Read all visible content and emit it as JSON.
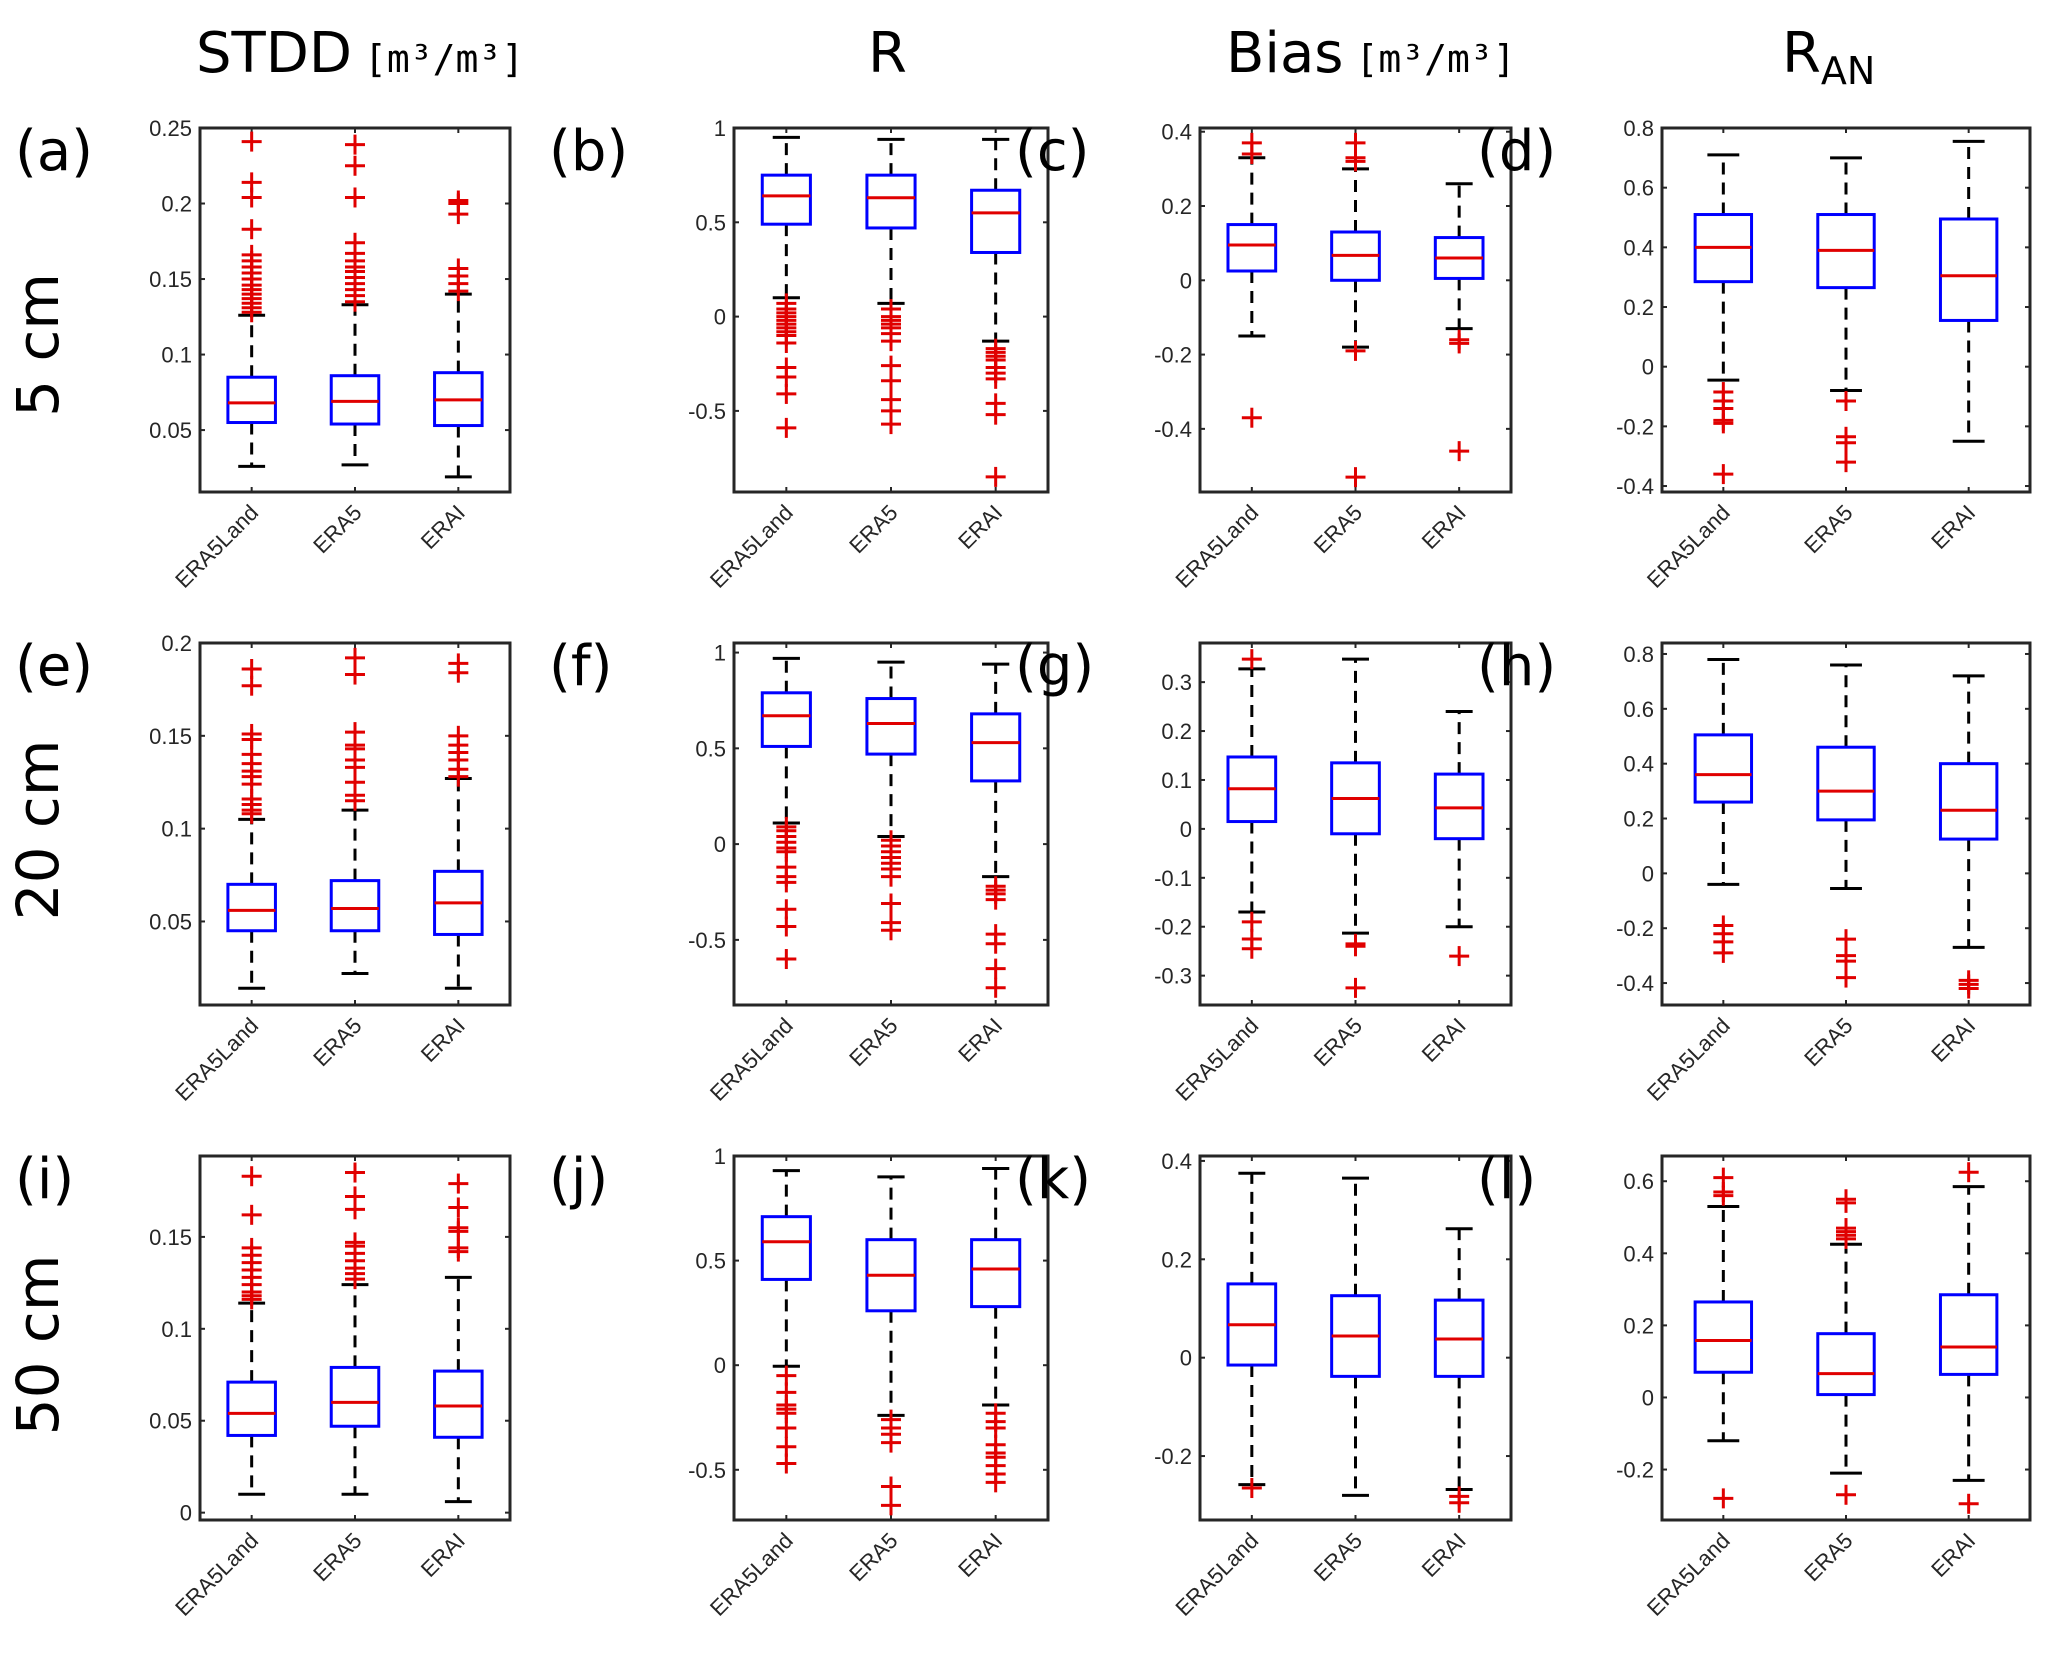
{
  "figure": {
    "column_titles": [
      {
        "main": "STDD",
        "unit": "[m³/m³]"
      },
      {
        "main": "R",
        "unit": ""
      },
      {
        "main": "Bias",
        "unit": "[m³/m³]"
      },
      {
        "main": "R",
        "sub": "AN",
        "unit": ""
      }
    ],
    "row_labels": [
      "5 cm",
      "20 cm",
      "50 cm"
    ],
    "colors": {
      "box": "#0000ff",
      "median": "#e00000",
      "whisker": "#000000",
      "outlier": "#e00000",
      "axes": "#262626"
    }
  },
  "chart_data": [
    {
      "type": "box",
      "panel": "(a)",
      "metric": "STDD",
      "depth": "5 cm",
      "categories": [
        "ERA5Land",
        "ERA5",
        "ERAI"
      ],
      "ylim": [
        0.009,
        0.25
      ],
      "yticks": [
        0.05,
        0.1,
        0.15,
        0.2,
        0.25
      ],
      "ytick_labels": [
        "0.05",
        "0.1",
        "0.15",
        "0.2",
        "0.25"
      ],
      "boxes": [
        {
          "whisker_low": 0.026,
          "q1": 0.055,
          "median": 0.068,
          "q3": 0.085,
          "whisker_high": 0.126,
          "outliers": [
            0.128,
            0.131,
            0.134,
            0.137,
            0.14,
            0.143,
            0.146,
            0.15,
            0.154,
            0.158,
            0.162,
            0.166,
            0.183,
            0.204,
            0.214,
            0.241
          ]
        },
        {
          "whisker_low": 0.027,
          "q1": 0.054,
          "median": 0.069,
          "q3": 0.086,
          "whisker_high": 0.133,
          "outliers": [
            0.135,
            0.139,
            0.143,
            0.147,
            0.151,
            0.155,
            0.158,
            0.162,
            0.167,
            0.174,
            0.204,
            0.225,
            0.239
          ]
        },
        {
          "whisker_low": 0.019,
          "q1": 0.053,
          "median": 0.07,
          "q3": 0.088,
          "whisker_high": 0.14,
          "outliers": [
            0.142,
            0.147,
            0.152,
            0.157,
            0.193,
            0.2,
            0.202
          ]
        }
      ]
    },
    {
      "type": "box",
      "panel": "(b)",
      "metric": "R",
      "depth": "5 cm",
      "categories": [
        "ERA5Land",
        "ERA5",
        "ERAI"
      ],
      "ylim": [
        -0.93,
        1.0
      ],
      "yticks": [
        -0.5,
        0,
        0.5,
        1
      ],
      "ytick_labels": [
        "-0.5",
        "0",
        "0.5",
        "1"
      ],
      "boxes": [
        {
          "whisker_low": 0.1,
          "q1": 0.49,
          "median": 0.64,
          "q3": 0.75,
          "whisker_high": 0.95,
          "outliers": [
            0.07,
            0.04,
            0.02,
            0.0,
            -0.02,
            -0.04,
            -0.06,
            -0.08,
            -0.1,
            -0.14,
            -0.27,
            -0.32,
            -0.41,
            -0.59
          ]
        },
        {
          "whisker_low": 0.07,
          "q1": 0.47,
          "median": 0.63,
          "q3": 0.75,
          "whisker_high": 0.94,
          "outliers": [
            0.04,
            0.0,
            -0.02,
            -0.04,
            -0.06,
            -0.09,
            -0.13,
            -0.26,
            -0.34,
            -0.44,
            -0.5,
            -0.57
          ]
        },
        {
          "whisker_low": -0.13,
          "q1": 0.34,
          "median": 0.55,
          "q3": 0.67,
          "whisker_high": 0.94,
          "outliers": [
            -0.17,
            -0.19,
            -0.21,
            -0.23,
            -0.27,
            -0.3,
            -0.33,
            -0.46,
            -0.52,
            -0.85
          ]
        }
      ]
    },
    {
      "type": "box",
      "panel": "(c)",
      "metric": "Bias",
      "depth": "5 cm",
      "categories": [
        "ERA5Land",
        "ERA5",
        "ERAI"
      ],
      "ylim": [
        -0.57,
        0.41
      ],
      "yticks": [
        -0.4,
        -0.2,
        0,
        0.2,
        0.4
      ],
      "ytick_labels": [
        "-0.4",
        "-0.2",
        "0",
        "0.2",
        "0.4"
      ],
      "boxes": [
        {
          "whisker_low": -0.15,
          "q1": 0.025,
          "median": 0.095,
          "q3": 0.15,
          "whisker_high": 0.33,
          "outliers": [
            0.34,
            0.37,
            -0.37
          ]
        },
        {
          "whisker_low": -0.18,
          "q1": 0.0,
          "median": 0.067,
          "q3": 0.13,
          "whisker_high": 0.3,
          "outliers": [
            0.32,
            0.33,
            0.37,
            -0.19,
            -0.53
          ]
        },
        {
          "whisker_low": -0.13,
          "q1": 0.005,
          "median": 0.06,
          "q3": 0.115,
          "whisker_high": 0.26,
          "outliers": [
            -0.16,
            -0.17,
            -0.46
          ]
        }
      ]
    },
    {
      "type": "box",
      "panel": "(d)",
      "metric": "R_AN",
      "depth": "5 cm",
      "categories": [
        "ERA5Land",
        "ERA5",
        "ERAI"
      ],
      "ylim": [
        -0.42,
        0.8
      ],
      "yticks": [
        -0.4,
        -0.2,
        0,
        0.2,
        0.4,
        0.6,
        0.8
      ],
      "ytick_labels": [
        "-0.4",
        "-0.2",
        "0",
        "0.2",
        "0.4",
        "0.6",
        "0.8"
      ],
      "boxes": [
        {
          "whisker_low": -0.045,
          "q1": 0.285,
          "median": 0.4,
          "q3": 0.51,
          "whisker_high": 0.71,
          "outliers": [
            -0.085,
            -0.115,
            -0.14,
            -0.18,
            -0.19,
            -0.36
          ]
        },
        {
          "whisker_low": -0.08,
          "q1": 0.265,
          "median": 0.39,
          "q3": 0.51,
          "whisker_high": 0.7,
          "outliers": [
            -0.115,
            -0.235,
            -0.255,
            -0.32
          ]
        },
        {
          "whisker_low": -0.25,
          "q1": 0.155,
          "median": 0.305,
          "q3": 0.495,
          "whisker_high": 0.755,
          "outliers": []
        }
      ]
    },
    {
      "type": "box",
      "panel": "(e)",
      "metric": "STDD",
      "depth": "20 cm",
      "categories": [
        "ERA5Land",
        "ERA5",
        "ERAI"
      ],
      "ylim": [
        0.005,
        0.2
      ],
      "yticks": [
        0.05,
        0.1,
        0.15,
        0.2
      ],
      "ytick_labels": [
        "0.05",
        "0.1",
        "0.15",
        "0.2"
      ],
      "boxes": [
        {
          "whisker_low": 0.014,
          "q1": 0.045,
          "median": 0.056,
          "q3": 0.07,
          "whisker_high": 0.105,
          "outliers": [
            0.108,
            0.11,
            0.113,
            0.116,
            0.124,
            0.128,
            0.131,
            0.135,
            0.14,
            0.148,
            0.151,
            0.177,
            0.186
          ]
        },
        {
          "whisker_low": 0.022,
          "q1": 0.045,
          "median": 0.057,
          "q3": 0.072,
          "whisker_high": 0.11,
          "outliers": [
            0.115,
            0.118,
            0.125,
            0.133,
            0.137,
            0.143,
            0.145,
            0.152,
            0.183,
            0.192
          ]
        },
        {
          "whisker_low": 0.014,
          "q1": 0.043,
          "median": 0.06,
          "q3": 0.077,
          "whisker_high": 0.127,
          "outliers": [
            0.128,
            0.132,
            0.137,
            0.141,
            0.145,
            0.15,
            0.184,
            0.189
          ]
        }
      ]
    },
    {
      "type": "box",
      "panel": "(f)",
      "metric": "R",
      "depth": "20 cm",
      "categories": [
        "ERA5Land",
        "ERA5",
        "ERAI"
      ],
      "ylim": [
        -0.84,
        1.05
      ],
      "yticks": [
        -0.5,
        0,
        0.5,
        1
      ],
      "ytick_labels": [
        "-0.5",
        "0",
        "0.5",
        "1"
      ],
      "boxes": [
        {
          "whisker_low": 0.11,
          "q1": 0.51,
          "median": 0.67,
          "q3": 0.79,
          "whisker_high": 0.97,
          "outliers": [
            0.09,
            0.07,
            0.04,
            0.01,
            -0.02,
            -0.04,
            -0.12,
            -0.17,
            -0.2,
            -0.34,
            -0.43,
            -0.6
          ]
        },
        {
          "whisker_low": 0.04,
          "q1": 0.47,
          "median": 0.63,
          "q3": 0.76,
          "whisker_high": 0.95,
          "outliers": [
            0.02,
            -0.01,
            -0.04,
            -0.07,
            -0.1,
            -0.13,
            -0.17,
            -0.31,
            -0.41,
            -0.45
          ]
        },
        {
          "whisker_low": -0.17,
          "q1": 0.33,
          "median": 0.53,
          "q3": 0.68,
          "whisker_high": 0.94,
          "outliers": [
            -0.22,
            -0.24,
            -0.26,
            -0.29,
            -0.47,
            -0.52,
            -0.65,
            -0.75
          ]
        }
      ]
    },
    {
      "type": "box",
      "panel": "(g)",
      "metric": "Bias",
      "depth": "20 cm",
      "categories": [
        "ERA5Land",
        "ERA5",
        "ERAI"
      ],
      "ylim": [
        -0.36,
        0.38
      ],
      "yticks": [
        -0.3,
        -0.2,
        -0.1,
        0,
        0.1,
        0.2,
        0.3
      ],
      "ytick_labels": [
        "-0.3",
        "-0.2",
        "-0.1",
        "0",
        "0.1",
        "0.2",
        "0.3"
      ],
      "boxes": [
        {
          "whisker_low": -0.17,
          "q1": 0.015,
          "median": 0.082,
          "q3": 0.147,
          "whisker_high": 0.327,
          "outliers": [
            0.347,
            -0.19,
            -0.225,
            -0.245
          ]
        },
        {
          "whisker_low": -0.213,
          "q1": -0.01,
          "median": 0.062,
          "q3": 0.135,
          "whisker_high": 0.347,
          "outliers": [
            -0.235,
            -0.24,
            -0.325
          ]
        },
        {
          "whisker_low": -0.2,
          "q1": -0.02,
          "median": 0.043,
          "q3": 0.112,
          "whisker_high": 0.24,
          "outliers": [
            -0.26
          ]
        }
      ]
    },
    {
      "type": "box",
      "panel": "(h)",
      "metric": "R_AN",
      "depth": "20 cm",
      "categories": [
        "ERA5Land",
        "ERA5",
        "ERAI"
      ],
      "ylim": [
        -0.48,
        0.84
      ],
      "yticks": [
        -0.4,
        -0.2,
        0,
        0.2,
        0.4,
        0.6,
        0.8
      ],
      "ytick_labels": [
        "-0.4",
        "-0.2",
        "0",
        "0.2",
        "0.4",
        "0.6",
        "0.8"
      ],
      "boxes": [
        {
          "whisker_low": -0.04,
          "q1": 0.26,
          "median": 0.36,
          "q3": 0.505,
          "whisker_high": 0.78,
          "outliers": [
            -0.19,
            -0.22,
            -0.25,
            -0.29
          ]
        },
        {
          "whisker_low": -0.055,
          "q1": 0.195,
          "median": 0.3,
          "q3": 0.46,
          "whisker_high": 0.76,
          "outliers": [
            -0.24,
            -0.3,
            -0.32,
            -0.38
          ]
        },
        {
          "whisker_low": -0.27,
          "q1": 0.125,
          "median": 0.23,
          "q3": 0.4,
          "whisker_high": 0.72,
          "outliers": [
            -0.39,
            -0.405,
            -0.42
          ]
        }
      ]
    },
    {
      "type": "box",
      "panel": "(i)",
      "metric": "STDD",
      "depth": "50 cm",
      "categories": [
        "ERA5Land",
        "ERA5",
        "ERAI"
      ],
      "ylim": [
        -0.004,
        0.194
      ],
      "yticks": [
        0,
        0.05,
        0.1,
        0.15
      ],
      "ytick_labels": [
        "0",
        "0.05",
        "0.1",
        "0.15"
      ],
      "boxes": [
        {
          "whisker_low": 0.01,
          "q1": 0.042,
          "median": 0.054,
          "q3": 0.071,
          "whisker_high": 0.114,
          "outliers": [
            0.116,
            0.118,
            0.12,
            0.124,
            0.128,
            0.132,
            0.136,
            0.14,
            0.144,
            0.162,
            0.183
          ]
        },
        {
          "whisker_low": 0.01,
          "q1": 0.047,
          "median": 0.06,
          "q3": 0.079,
          "whisker_high": 0.124,
          "outliers": [
            0.127,
            0.13,
            0.133,
            0.137,
            0.141,
            0.145,
            0.147,
            0.165,
            0.172,
            0.185
          ]
        },
        {
          "whisker_low": 0.006,
          "q1": 0.041,
          "median": 0.058,
          "q3": 0.077,
          "whisker_high": 0.128,
          "outliers": [
            0.142,
            0.144,
            0.153,
            0.155,
            0.166,
            0.179
          ]
        }
      ]
    },
    {
      "type": "box",
      "panel": "(j)",
      "metric": "R",
      "depth": "50 cm",
      "categories": [
        "ERA5Land",
        "ERA5",
        "ERAI"
      ],
      "ylim": [
        -0.74,
        1.0
      ],
      "yticks": [
        -0.5,
        0,
        0.5,
        1
      ],
      "ytick_labels": [
        "-0.5",
        "0",
        "0.5",
        "1"
      ],
      "boxes": [
        {
          "whisker_low": -0.005,
          "q1": 0.41,
          "median": 0.59,
          "q3": 0.71,
          "whisker_high": 0.93,
          "outliers": [
            -0.05,
            -0.13,
            -0.19,
            -0.21,
            -0.23,
            -0.3,
            -0.39,
            -0.47
          ]
        },
        {
          "whisker_low": -0.24,
          "q1": 0.26,
          "median": 0.43,
          "q3": 0.6,
          "whisker_high": 0.9,
          "outliers": [
            -0.26,
            -0.3,
            -0.33,
            -0.37,
            -0.58,
            -0.67
          ]
        },
        {
          "whisker_low": -0.19,
          "q1": 0.28,
          "median": 0.46,
          "q3": 0.6,
          "whisker_high": 0.94,
          "outliers": [
            -0.23,
            -0.27,
            -0.3,
            -0.38,
            -0.42,
            -0.44,
            -0.48,
            -0.52,
            -0.56
          ]
        }
      ]
    },
    {
      "type": "box",
      "panel": "(k)",
      "metric": "Bias",
      "depth": "50 cm",
      "categories": [
        "ERA5Land",
        "ERA5",
        "ERAI"
      ],
      "ylim": [
        -0.33,
        0.41
      ],
      "yticks": [
        -0.2,
        0,
        0.2,
        0.4
      ],
      "ytick_labels": [
        "-0.2",
        "0",
        "0.2",
        "0.4"
      ],
      "boxes": [
        {
          "whisker_low": -0.258,
          "q1": -0.015,
          "median": 0.067,
          "q3": 0.15,
          "whisker_high": 0.375,
          "outliers": [
            -0.265
          ]
        },
        {
          "whisker_low": -0.28,
          "q1": -0.038,
          "median": 0.044,
          "q3": 0.126,
          "whisker_high": 0.365,
          "outliers": []
        },
        {
          "whisker_low": -0.268,
          "q1": -0.038,
          "median": 0.038,
          "q3": 0.117,
          "whisker_high": 0.262,
          "outliers": [
            -0.282,
            -0.295
          ]
        }
      ]
    },
    {
      "type": "box",
      "panel": "(l)",
      "metric": "R_AN",
      "depth": "50 cm",
      "categories": [
        "ERA5Land",
        "ERA5",
        "ERAI"
      ],
      "ylim": [
        -0.34,
        0.67
      ],
      "yticks": [
        -0.2,
        0,
        0.2,
        0.4,
        0.6
      ],
      "ytick_labels": [
        "-0.2",
        "0",
        "0.2",
        "0.4",
        "0.6"
      ],
      "boxes": [
        {
          "whisker_low": -0.12,
          "q1": 0.07,
          "median": 0.158,
          "q3": 0.265,
          "whisker_high": 0.53,
          "outliers": [
            0.56,
            0.57,
            0.61,
            -0.28
          ]
        },
        {
          "whisker_low": -0.21,
          "q1": 0.008,
          "median": 0.066,
          "q3": 0.177,
          "whisker_high": 0.425,
          "outliers": [
            0.44,
            0.45,
            0.46,
            0.47,
            0.54,
            0.55,
            -0.27
          ]
        },
        {
          "whisker_low": -0.23,
          "q1": 0.064,
          "median": 0.14,
          "q3": 0.285,
          "whisker_high": 0.585,
          "outliers": [
            0.625,
            -0.295
          ]
        }
      ]
    }
  ]
}
